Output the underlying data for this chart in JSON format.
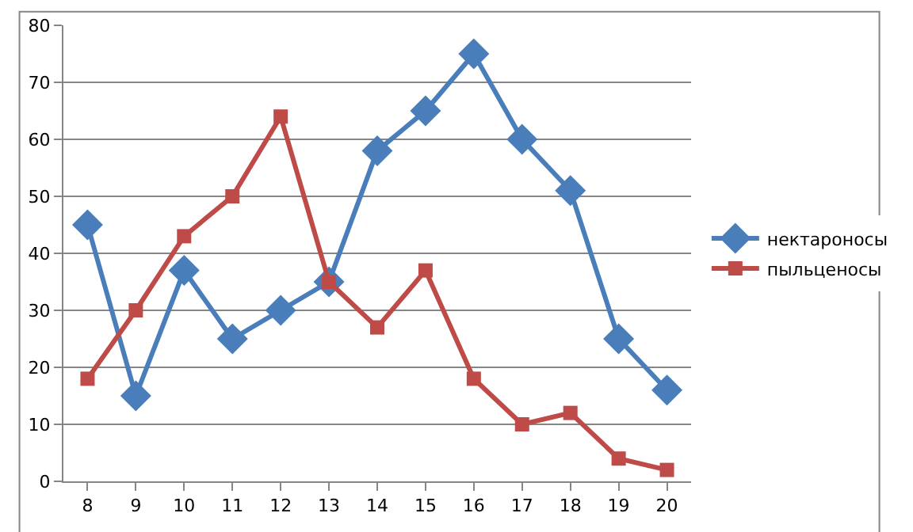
{
  "chart_data": {
    "type": "line",
    "categories": [
      "8",
      "9",
      "10",
      "11",
      "12",
      "13",
      "14",
      "15",
      "16",
      "17",
      "18",
      "19",
      "20"
    ],
    "series": [
      {
        "name": "нектароносы",
        "color": "#4a7ebb",
        "marker": "diamond",
        "values": [
          45,
          15,
          37,
          25,
          30,
          35,
          58,
          65,
          75,
          60,
          51,
          25,
          16
        ]
      },
      {
        "name": "пыльценосы",
        "color": "#be4b48",
        "marker": "square",
        "values": [
          18,
          30,
          43,
          50,
          64,
          35,
          27,
          37,
          18,
          10,
          12,
          4,
          2
        ]
      }
    ],
    "ylim": [
      0,
      80
    ],
    "yticks": [
      0,
      10,
      20,
      30,
      40,
      50,
      60,
      70,
      80
    ],
    "grid": "y",
    "legend": "right",
    "line_style": "solid"
  }
}
